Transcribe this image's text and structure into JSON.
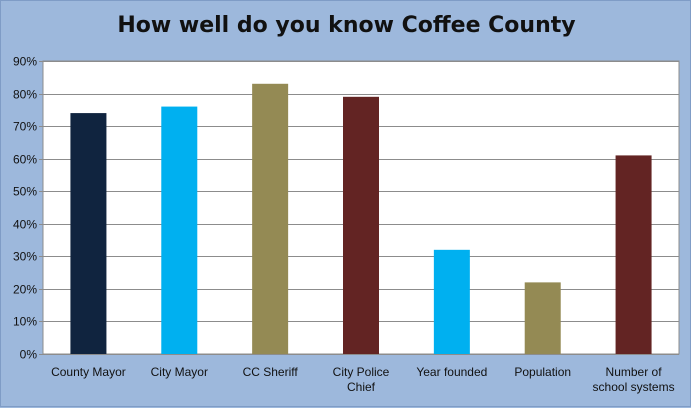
{
  "chart_data": {
    "type": "bar",
    "title": "How well do you know Coffee County",
    "categories": [
      [
        "County Mayor"
      ],
      [
        "City Mayor"
      ],
      [
        "CC Sheriff"
      ],
      [
        "City Police",
        "Chief"
      ],
      [
        "Year founded"
      ],
      [
        "Population"
      ],
      [
        "Number of",
        "school systems"
      ]
    ],
    "values": [
      74,
      76,
      83,
      79,
      32,
      22,
      61
    ],
    "bar_colors": [
      "#10243f",
      "#00b0f0",
      "#948a54",
      "#632423",
      "#00b0f0",
      "#948a54",
      "#632423"
    ],
    "y_ticks": [
      "0%",
      "10%",
      "20%",
      "30%",
      "40%",
      "50%",
      "60%",
      "70%",
      "80%",
      "90%"
    ],
    "ylim": [
      0,
      90
    ],
    "grid": true,
    "legend": "none",
    "xlabel": "",
    "ylabel": ""
  }
}
